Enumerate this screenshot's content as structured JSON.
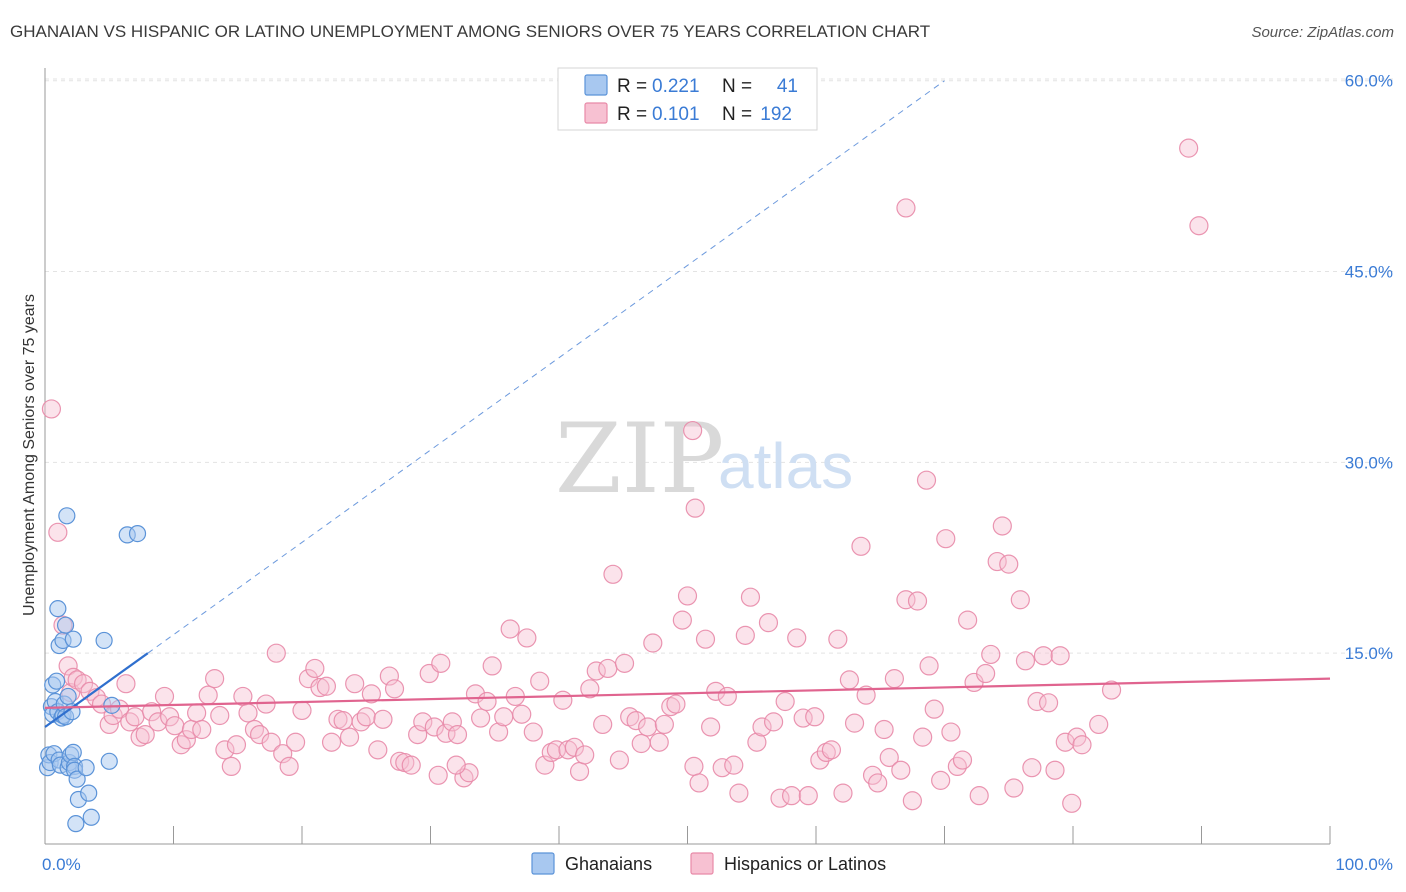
{
  "title": "GHANAIAN VS HISPANIC OR LATINO UNEMPLOYMENT AMONG SENIORS OVER 75 YEARS CORRELATION CHART",
  "source": "Source: ZipAtlas.com",
  "watermark": {
    "zip": "ZIP",
    "atlas": "atlas"
  },
  "colors": {
    "ghanaian_fill": "#a8c8f0",
    "ghanaian_stroke": "#5b93d8",
    "ghanaian_line": "#2f6fce",
    "hispanic_fill": "#f7c1d2",
    "hispanic_stroke": "#e88aa8",
    "hispanic_line": "#e0648f",
    "tick_text": "#3a7bd5",
    "grid": "#e3e3e3"
  },
  "legend": {
    "rows": [
      {
        "r_label": "R =",
        "r_value": "0.221",
        "n_label": "N =",
        "n_value": "41"
      },
      {
        "r_label": "R =",
        "r_value": "0.101",
        "n_label": "N =",
        "n_value": "192"
      }
    ]
  },
  "bottom_legend": [
    "Ghanaians",
    "Hispanics or Latinos"
  ],
  "chart_data": {
    "type": "scatter",
    "title": "GHANAIAN VS HISPANIC OR LATINO UNEMPLOYMENT AMONG SENIORS OVER 75 YEARS CORRELATION CHART",
    "xlabel": "",
    "ylabel": "Unemployment Among Seniors over 75 years",
    "xlim": [
      0,
      100
    ],
    "ylim": [
      0,
      61
    ],
    "x_tick_labels": [
      "0.0%",
      "100.0%"
    ],
    "y_ticks": [
      15,
      30,
      45,
      60
    ],
    "y_tick_labels": [
      "15.0%",
      "30.0%",
      "45.0%",
      "60.0%"
    ],
    "grid": true,
    "series": [
      {
        "name": "Ghanaians",
        "R": 0.221,
        "N": 41,
        "trend": {
          "x": [
            0,
            8
          ],
          "y": [
            9.2,
            15.0
          ],
          "dashed_extension_to": [
            70,
            60
          ]
        },
        "points": [
          [
            0.2,
            6.0
          ],
          [
            0.3,
            7.0
          ],
          [
            0.4,
            6.4
          ],
          [
            0.5,
            10.8
          ],
          [
            0.6,
            10.2
          ],
          [
            0.6,
            12.5
          ],
          [
            0.7,
            7.1
          ],
          [
            0.8,
            11.2
          ],
          [
            0.9,
            12.8
          ],
          [
            1.0,
            10.4
          ],
          [
            1.0,
            18.5
          ],
          [
            1.1,
            15.6
          ],
          [
            1.1,
            6.6
          ],
          [
            1.2,
            6.2
          ],
          [
            1.3,
            9.9
          ],
          [
            1.4,
            16.0
          ],
          [
            1.4,
            10.1
          ],
          [
            1.5,
            11.0
          ],
          [
            1.6,
            17.2
          ],
          [
            1.6,
            10.0
          ],
          [
            1.7,
            25.8
          ],
          [
            1.8,
            6.0
          ],
          [
            1.8,
            11.6
          ],
          [
            1.9,
            6.4
          ],
          [
            2.0,
            7.0
          ],
          [
            2.1,
            10.4
          ],
          [
            2.2,
            16.1
          ],
          [
            2.2,
            7.2
          ],
          [
            2.3,
            6.1
          ],
          [
            2.3,
            5.8
          ],
          [
            2.4,
            1.6
          ],
          [
            2.5,
            5.1
          ],
          [
            2.6,
            3.5
          ],
          [
            3.2,
            6.0
          ],
          [
            3.4,
            4.0
          ],
          [
            3.6,
            2.1
          ],
          [
            4.6,
            16.0
          ],
          [
            5.0,
            6.5
          ],
          [
            5.2,
            10.9
          ],
          [
            6.4,
            24.3
          ],
          [
            7.2,
            24.4
          ]
        ]
      },
      {
        "name": "Hispanics or Latinos",
        "R": 0.101,
        "N": 192,
        "trend": {
          "x": [
            0,
            100
          ],
          "y": [
            10.7,
            13.0
          ]
        },
        "points": [
          [
            0.5,
            34.2
          ],
          [
            1.0,
            24.5
          ],
          [
            1.4,
            17.2
          ],
          [
            1.8,
            14.0
          ],
          [
            2.0,
            11.9
          ],
          [
            2.2,
            13.1
          ],
          [
            2.5,
            12.9
          ],
          [
            3.0,
            12.6
          ],
          [
            3.5,
            12.0
          ],
          [
            4.0,
            11.5
          ],
          [
            4.4,
            11.0
          ],
          [
            5.0,
            9.4
          ],
          [
            5.3,
            10.1
          ],
          [
            5.8,
            10.6
          ],
          [
            6.3,
            12.6
          ],
          [
            6.6,
            9.6
          ],
          [
            7.0,
            10.0
          ],
          [
            7.4,
            8.4
          ],
          [
            7.8,
            8.6
          ],
          [
            8.3,
            10.4
          ],
          [
            8.8,
            9.6
          ],
          [
            9.3,
            11.6
          ],
          [
            9.7,
            10.0
          ],
          [
            10.1,
            9.3
          ],
          [
            10.6,
            7.8
          ],
          [
            11.0,
            8.2
          ],
          [
            11.4,
            9.0
          ],
          [
            11.8,
            10.3
          ],
          [
            12.2,
            9.0
          ],
          [
            12.7,
            11.7
          ],
          [
            13.2,
            13.0
          ],
          [
            13.6,
            10.1
          ],
          [
            14.0,
            7.4
          ],
          [
            14.5,
            6.1
          ],
          [
            14.9,
            7.8
          ],
          [
            15.4,
            11.6
          ],
          [
            15.8,
            10.3
          ],
          [
            16.3,
            9.0
          ],
          [
            16.7,
            8.6
          ],
          [
            17.2,
            11.0
          ],
          [
            17.6,
            8.0
          ],
          [
            18.0,
            15.0
          ],
          [
            18.5,
            7.1
          ],
          [
            19.0,
            6.1
          ],
          [
            19.5,
            8.0
          ],
          [
            20.0,
            10.5
          ],
          [
            20.5,
            13.0
          ],
          [
            21.0,
            13.8
          ],
          [
            21.4,
            12.3
          ],
          [
            21.9,
            12.4
          ],
          [
            22.3,
            8.0
          ],
          [
            22.8,
            9.8
          ],
          [
            23.2,
            9.7
          ],
          [
            23.7,
            8.4
          ],
          [
            24.1,
            12.6
          ],
          [
            24.6,
            9.6
          ],
          [
            25.0,
            10.0
          ],
          [
            25.4,
            11.8
          ],
          [
            25.9,
            7.4
          ],
          [
            26.3,
            9.8
          ],
          [
            26.8,
            13.2
          ],
          [
            27.2,
            12.2
          ],
          [
            27.6,
            6.5
          ],
          [
            28.0,
            6.4
          ],
          [
            28.5,
            6.2
          ],
          [
            29.0,
            8.6
          ],
          [
            29.4,
            9.6
          ],
          [
            29.9,
            13.4
          ],
          [
            30.3,
            9.2
          ],
          [
            30.8,
            14.2
          ],
          [
            31.2,
            8.7
          ],
          [
            31.7,
            9.6
          ],
          [
            32.1,
            8.6
          ],
          [
            32.6,
            5.2
          ],
          [
            33.0,
            5.6
          ],
          [
            33.5,
            11.8
          ],
          [
            33.9,
            9.9
          ],
          [
            34.4,
            11.2
          ],
          [
            34.8,
            14.0
          ],
          [
            35.3,
            8.8
          ],
          [
            35.7,
            10.0
          ],
          [
            36.2,
            16.9
          ],
          [
            36.6,
            11.6
          ],
          [
            37.1,
            10.2
          ],
          [
            37.5,
            16.2
          ],
          [
            38.0,
            8.8
          ],
          [
            38.5,
            12.8
          ],
          [
            38.9,
            6.2
          ],
          [
            39.4,
            7.2
          ],
          [
            39.8,
            7.4
          ],
          [
            40.3,
            11.3
          ],
          [
            40.7,
            7.4
          ],
          [
            41.2,
            7.6
          ],
          [
            41.6,
            5.7
          ],
          [
            42.0,
            7.0
          ],
          [
            42.4,
            12.2
          ],
          [
            42.9,
            13.6
          ],
          [
            43.4,
            9.4
          ],
          [
            43.8,
            13.8
          ],
          [
            44.2,
            21.2
          ],
          [
            44.7,
            6.6
          ],
          [
            45.1,
            14.2
          ],
          [
            45.5,
            10.0
          ],
          [
            46.0,
            9.7
          ],
          [
            46.4,
            7.9
          ],
          [
            46.9,
            9.2
          ],
          [
            47.3,
            15.8
          ],
          [
            47.8,
            8.0
          ],
          [
            48.2,
            9.4
          ],
          [
            48.7,
            10.8
          ],
          [
            49.1,
            11.0
          ],
          [
            49.6,
            17.6
          ],
          [
            50.0,
            19.5
          ],
          [
            50.5,
            6.1
          ],
          [
            50.9,
            4.8
          ],
          [
            51.4,
            16.1
          ],
          [
            51.8,
            9.2
          ],
          [
            52.2,
            12.0
          ],
          [
            52.7,
            6.0
          ],
          [
            53.1,
            11.6
          ],
          [
            53.6,
            6.2
          ],
          [
            54.0,
            4.0
          ],
          [
            54.5,
            16.4
          ],
          [
            54.9,
            19.4
          ],
          [
            55.4,
            8.0
          ],
          [
            55.8,
            9.2
          ],
          [
            56.3,
            17.4
          ],
          [
            56.7,
            9.6
          ],
          [
            57.2,
            3.6
          ],
          [
            57.6,
            11.2
          ],
          [
            58.1,
            3.8
          ],
          [
            58.5,
            16.2
          ],
          [
            59.0,
            9.9
          ],
          [
            59.4,
            3.8
          ],
          [
            59.9,
            10.0
          ],
          [
            60.3,
            6.6
          ],
          [
            60.8,
            7.2
          ],
          [
            61.2,
            7.4
          ],
          [
            61.7,
            16.1
          ],
          [
            62.1,
            4.0
          ],
          [
            62.6,
            12.9
          ],
          [
            63.0,
            9.5
          ],
          [
            63.5,
            23.4
          ],
          [
            63.9,
            11.7
          ],
          [
            64.4,
            5.4
          ],
          [
            64.8,
            4.8
          ],
          [
            65.3,
            9.0
          ],
          [
            65.7,
            6.8
          ],
          [
            66.1,
            13.0
          ],
          [
            66.6,
            5.8
          ],
          [
            67.0,
            19.2
          ],
          [
            67.5,
            3.4
          ],
          [
            67.9,
            19.1
          ],
          [
            68.3,
            8.4
          ],
          [
            68.8,
            14.0
          ],
          [
            69.2,
            10.6
          ],
          [
            69.7,
            5.0
          ],
          [
            70.1,
            24.0
          ],
          [
            70.5,
            8.8
          ],
          [
            71.0,
            6.1
          ],
          [
            71.4,
            6.6
          ],
          [
            71.8,
            17.6
          ],
          [
            72.3,
            12.7
          ],
          [
            72.7,
            3.8
          ],
          [
            73.2,
            13.4
          ],
          [
            73.6,
            14.9
          ],
          [
            74.1,
            22.2
          ],
          [
            74.5,
            25.0
          ],
          [
            75.0,
            22.0
          ],
          [
            75.4,
            4.4
          ],
          [
            75.9,
            19.2
          ],
          [
            76.3,
            14.4
          ],
          [
            76.8,
            6.0
          ],
          [
            77.2,
            11.2
          ],
          [
            77.7,
            14.8
          ],
          [
            78.1,
            11.1
          ],
          [
            78.6,
            5.8
          ],
          [
            79.0,
            14.8
          ],
          [
            79.4,
            8.0
          ],
          [
            79.9,
            3.2
          ],
          [
            80.3,
            8.4
          ],
          [
            80.7,
            7.8
          ],
          [
            30.6,
            5.4
          ],
          [
            32.0,
            6.2
          ],
          [
            67.0,
            50.0
          ],
          [
            89.0,
            54.7
          ],
          [
            89.8,
            48.6
          ],
          [
            50.4,
            32.5
          ],
          [
            50.6,
            26.4
          ],
          [
            68.6,
            28.6
          ],
          [
            83.0,
            12.1
          ],
          [
            82.0,
            9.4
          ]
        ]
      }
    ]
  }
}
